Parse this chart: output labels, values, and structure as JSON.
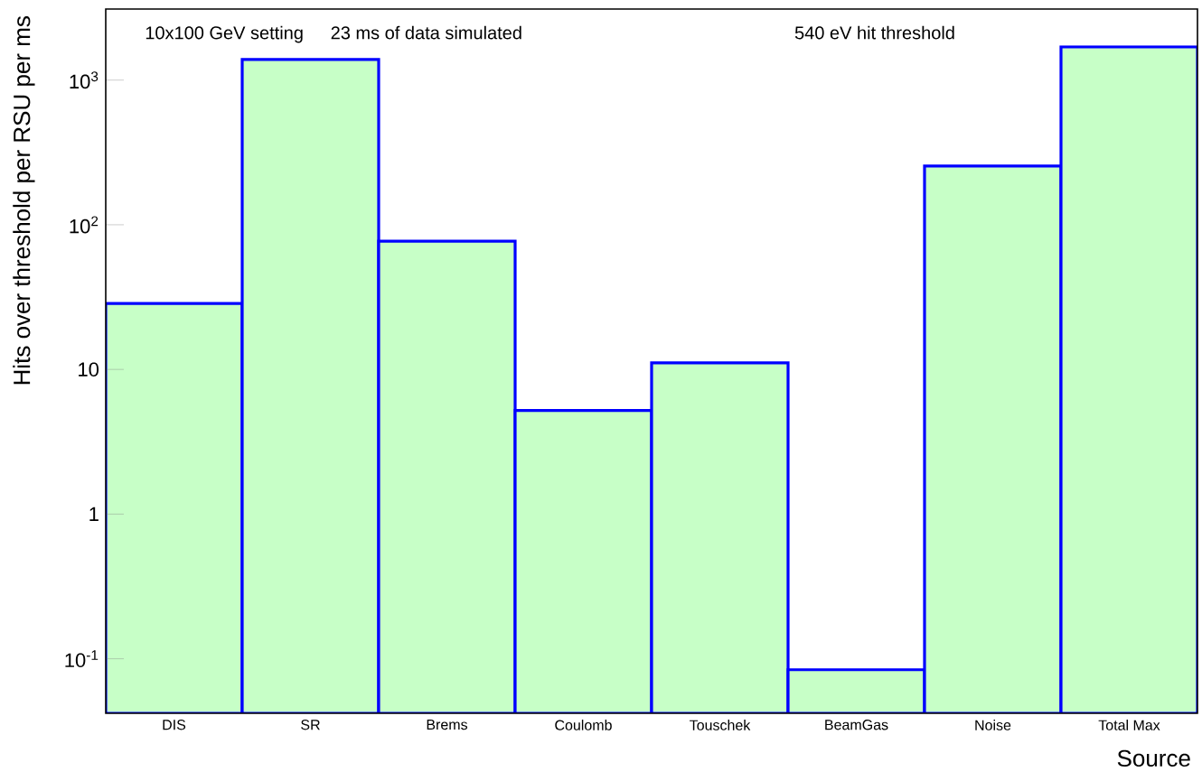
{
  "chart_data": {
    "type": "bar",
    "categories": [
      "DIS",
      "SR",
      "Brems",
      "Coulomb",
      "Touschek",
      "BeamGas",
      "Noise",
      "Total Max"
    ],
    "values": [
      28.6,
      1390,
      77,
      5.2,
      11.1,
      0.084,
      255,
      1700
    ],
    "color": "#0000ff",
    "log": true,
    "ylim": [
      0.042,
      3100
    ],
    "yticks": [
      {
        "value": 0.1,
        "label": "10$^{-1}$"
      },
      1,
      10,
      {
        "value": 100,
        "label": "10$^{2}$"
      },
      {
        "value": 1000,
        "label": "10$^{3}$"
      }
    ],
    "xlabel": "Source",
    "ylabel": "Hits over threshold per RSU per ms",
    "annotations": [
      "10x100 GeV setting",
      "23 ms of data simulated",
      "540 eV hit threshold"
    ]
  }
}
